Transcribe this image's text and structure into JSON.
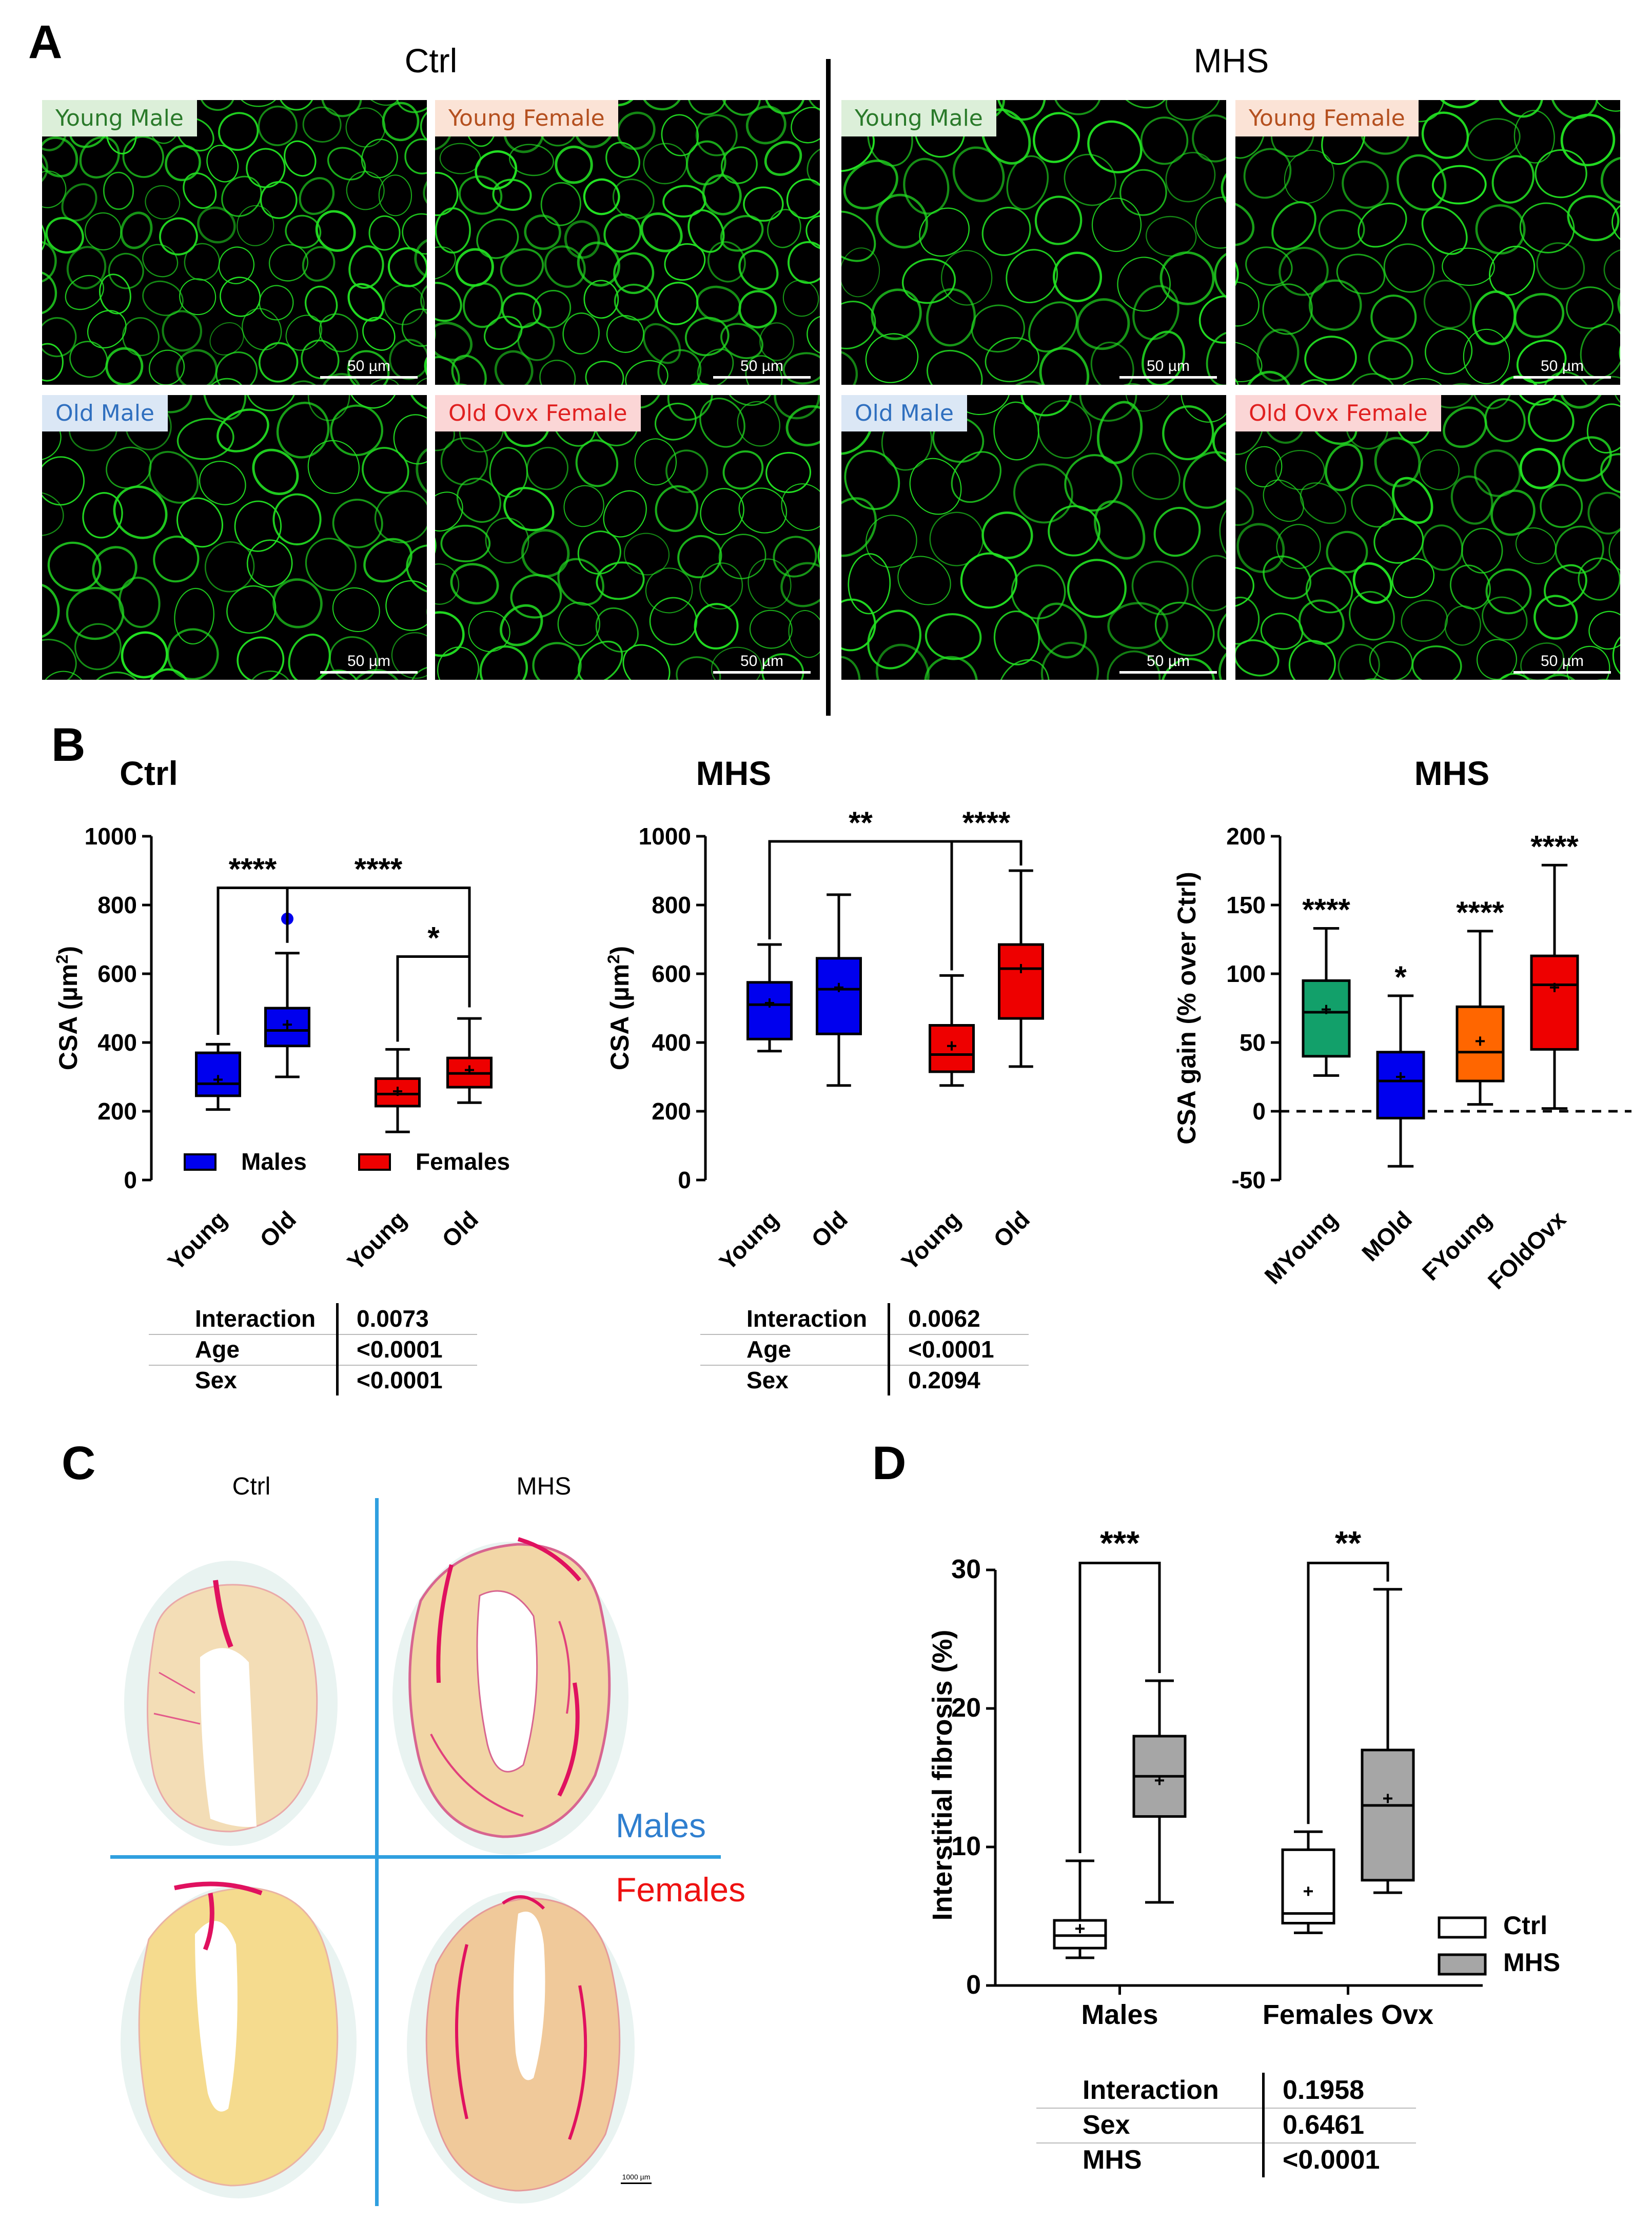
{
  "panel_a": {
    "letter": "A",
    "headings": [
      "Ctrl",
      "MHS"
    ],
    "tiles": [
      {
        "group": "Ctrl",
        "label": "Young Male",
        "label_bg": "#dcefd9",
        "label_color": "#2a7a2a",
        "scale": "50 µm",
        "cell": 78
      },
      {
        "group": "Ctrl",
        "label": "Young Female",
        "label_bg": "#fbe3d6",
        "label_color": "#b5501f",
        "scale": "50 µm",
        "cell": 80
      },
      {
        "group": "MHS",
        "label": "Young Male",
        "label_bg": "#dcefd9",
        "label_color": "#2a7a2a",
        "scale": "50 µm",
        "cell": 105
      },
      {
        "group": "MHS",
        "label": "Young Female",
        "label_bg": "#fbe3d6",
        "label_color": "#b5501f",
        "scale": "50 µm",
        "cell": 100
      },
      {
        "group": "Ctrl",
        "label": "Old Male",
        "label_bg": "#dbe7f5",
        "label_color": "#2f6fbf",
        "scale": "50 µm",
        "cell": 102
      },
      {
        "group": "Ctrl",
        "label": "Old Ovx Female",
        "label_bg": "#fbd6d6",
        "label_color": "#e02020",
        "scale": "50 µm",
        "cell": 92
      },
      {
        "group": "MHS",
        "label": "Old Male",
        "label_bg": "#dbe7f5",
        "label_color": "#2f6fbf",
        "scale": "50 µm",
        "cell": 112
      },
      {
        "group": "MHS",
        "label": "Old Ovx Female",
        "label_bg": "#fbd6d6",
        "label_color": "#e02020",
        "scale": "50 µm",
        "cell": 90
      }
    ]
  },
  "panel_b": {
    "letter": "B",
    "charts": [
      {
        "title": "Ctrl",
        "ylabel_main": "CSA (µm",
        "ylabel_sup": "2",
        "ylabel_end": ")",
        "legend": [
          {
            "label": "Males",
            "color": "#0000ee"
          },
          {
            "label": "Females",
            "color": "#ee0000"
          }
        ]
      },
      {
        "title": "MHS",
        "ylabel_main": "CSA (µm",
        "ylabel_sup": "2",
        "ylabel_end": ")"
      },
      {
        "title": "MHS",
        "ylabel": "CSA gain (% over Ctrl)"
      }
    ],
    "tables": [
      {
        "rows": [
          [
            "Interaction",
            "0.0073"
          ],
          [
            "Age",
            "<0.0001"
          ],
          [
            "Sex",
            "<0.0001"
          ]
        ]
      },
      {
        "rows": [
          [
            "Interaction",
            "0.0062"
          ],
          [
            "Age",
            "<0.0001"
          ],
          [
            "Sex",
            "0.2094"
          ]
        ]
      }
    ]
  },
  "panel_c": {
    "letter": "C",
    "col_headings": [
      "Ctrl",
      "MHS"
    ],
    "row_labels": [
      {
        "label": "Males",
        "color": "#2f7fcf"
      },
      {
        "label": "Females",
        "color": "#ee1111"
      }
    ],
    "scale": "1000 µm"
  },
  "panel_d": {
    "letter": "D",
    "ylabel": "Interstitial fibrosis (%)",
    "legend": [
      {
        "label": "Ctrl",
        "color": "#ffffff"
      },
      {
        "label": "MHS",
        "color": "#a6a6a6"
      }
    ],
    "table": {
      "rows": [
        [
          "Interaction",
          "0.1958"
        ],
        [
          "Sex",
          "0.6461"
        ],
        [
          "MHS",
          "<0.0001"
        ]
      ]
    }
  },
  "chart_data": [
    {
      "type": "box",
      "title": "Ctrl",
      "ylabel": "CSA (µm2)",
      "ylim": [
        0,
        1000
      ],
      "yticks": [
        0,
        200,
        400,
        600,
        800,
        1000
      ],
      "categories": [
        "Young",
        "Old",
        "Young",
        "Old"
      ],
      "series": [
        {
          "name": "Males",
          "color": "#0000ee",
          "boxes": [
            {
              "category": "Young",
              "min": 205,
              "q1": 245,
              "median": 280,
              "q3": 370,
              "max": 395,
              "mean": 292
            },
            {
              "category": "Old",
              "min": 300,
              "q1": 390,
              "median": 435,
              "q3": 500,
              "max": 660,
              "mean": 452,
              "outliers": [
                760
              ]
            }
          ]
        },
        {
          "name": "Females",
          "color": "#ee0000",
          "boxes": [
            {
              "category": "Young",
              "min": 140,
              "q1": 215,
              "median": 250,
              "q3": 295,
              "max": 380,
              "mean": 258
            },
            {
              "category": "Old",
              "min": 225,
              "q1": 270,
              "median": 310,
              "q3": 355,
              "max": 470,
              "mean": 320
            }
          ]
        }
      ],
      "significance": [
        {
          "from": 0,
          "to": 1,
          "label": "****"
        },
        {
          "from": 1,
          "to": 3,
          "label": "****"
        },
        {
          "from": 2,
          "to": 3,
          "label": "*"
        }
      ]
    },
    {
      "type": "box",
      "title": "MHS",
      "ylabel": "CSA (µm2)",
      "ylim": [
        0,
        1000
      ],
      "yticks": [
        0,
        200,
        400,
        600,
        800,
        1000
      ],
      "categories": [
        "Young",
        "Old",
        "Young",
        "Old"
      ],
      "series": [
        {
          "name": "Males",
          "color": "#0000ee",
          "boxes": [
            {
              "category": "Young",
              "min": 375,
              "q1": 410,
              "median": 510,
              "q3": 575,
              "max": 685,
              "mean": 515
            },
            {
              "category": "Old",
              "min": 275,
              "q1": 425,
              "median": 555,
              "q3": 645,
              "max": 830,
              "mean": 560
            }
          ]
        },
        {
          "name": "Females",
          "color": "#ee0000",
          "boxes": [
            {
              "category": "Young",
              "min": 275,
              "q1": 315,
              "median": 365,
              "q3": 450,
              "max": 595,
              "mean": 390
            },
            {
              "category": "Old",
              "min": 330,
              "q1": 470,
              "median": 615,
              "q3": 685,
              "max": 900,
              "mean": 615
            }
          ]
        }
      ],
      "significance": [
        {
          "from": 0,
          "to": 2,
          "label": "**"
        },
        {
          "from": 2,
          "to": 3,
          "label": "****"
        }
      ]
    },
    {
      "type": "box",
      "title": "MHS",
      "ylabel": "CSA gain (% over Ctrl)",
      "ylim": [
        -50,
        200
      ],
      "yticks": [
        -50,
        0,
        50,
        100,
        150,
        200
      ],
      "reference_line": 0,
      "categories": [
        "MYoung",
        "MOld",
        "FYoung",
        "FOldOvx"
      ],
      "boxes": [
        {
          "category": "MYoung",
          "color": "#12a06a",
          "min": 26,
          "q1": 40,
          "median": 72,
          "q3": 95,
          "max": 133,
          "mean": 74,
          "label": "****"
        },
        {
          "category": "MOld",
          "color": "#0000ee",
          "min": -40,
          "q1": -5,
          "median": 22,
          "q3": 43,
          "max": 84,
          "mean": 25,
          "label": "*"
        },
        {
          "category": "FYoung",
          "color": "#ff6600",
          "min": 5,
          "q1": 22,
          "median": 43,
          "q3": 76,
          "max": 131,
          "mean": 51,
          "label": "****"
        },
        {
          "category": "FOldOvx",
          "color": "#ee0000",
          "min": 2,
          "q1": 45,
          "median": 92,
          "q3": 113,
          "max": 179,
          "mean": 90,
          "label": "****"
        }
      ]
    },
    {
      "type": "box",
      "ylabel": "Interstitial fibrosis (%)",
      "ylim": [
        0,
        30
      ],
      "yticks": [
        0,
        10,
        20,
        30
      ],
      "categories": [
        "Males",
        "Females Ovx"
      ],
      "series": [
        {
          "name": "Ctrl",
          "color": "#ffffff",
          "boxes": [
            {
              "category": "Males",
              "min": 2,
              "q1": 2.7,
              "median": 3.6,
              "q3": 4.7,
              "max": 9,
              "mean": 4.1
            },
            {
              "category": "Females Ovx",
              "min": 3.8,
              "q1": 4.5,
              "median": 5.2,
              "q3": 9.8,
              "max": 11.1,
              "mean": 6.8
            }
          ]
        },
        {
          "name": "MHS",
          "color": "#a6a6a6",
          "boxes": [
            {
              "category": "Males",
              "min": 6,
              "q1": 12.2,
              "median": 15.1,
              "q3": 18,
              "max": 22,
              "mean": 14.8
            },
            {
              "category": "Females Ovx",
              "min": 6.7,
              "q1": 7.6,
              "median": 13,
              "q3": 17,
              "max": 28.6,
              "mean": 13.5
            }
          ]
        }
      ],
      "significance": [
        {
          "category": "Males",
          "label": "***"
        },
        {
          "category": "Females Ovx",
          "label": "**"
        }
      ]
    }
  ]
}
